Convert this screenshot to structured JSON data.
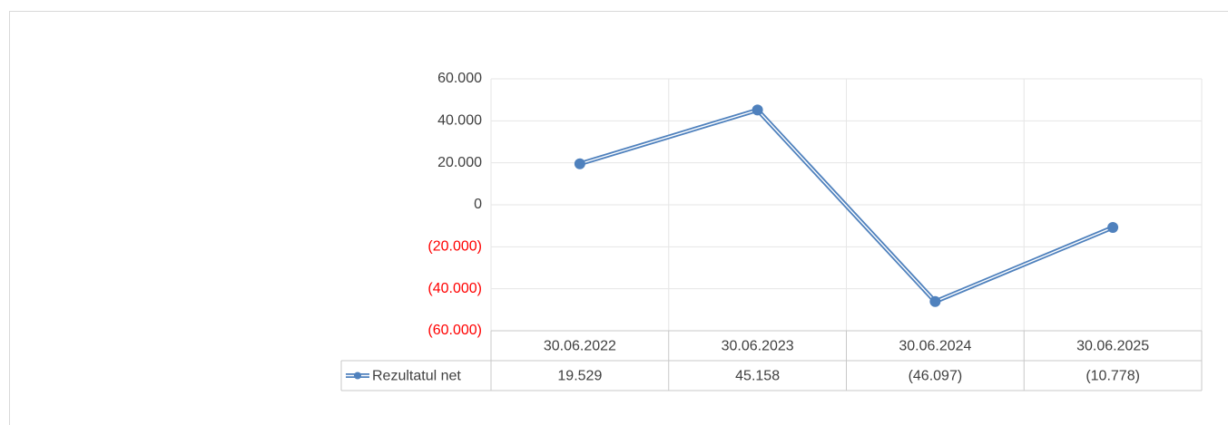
{
  "chart_data": {
    "type": "line",
    "categories": [
      "30.06.2022",
      "30.06.2023",
      "30.06.2024",
      "30.06.2025"
    ],
    "series": [
      {
        "name": "Rezultatul net",
        "color": "#4f81bd",
        "values": [
          19529,
          45158,
          -46097,
          -10778
        ],
        "value_labels": [
          "19.529",
          "45.158",
          "(46.097)",
          "(10.778)"
        ]
      }
    ],
    "ylim": [
      -60000,
      60000
    ],
    "yticks": [
      {
        "value": -60000,
        "label": "(60.000)"
      },
      {
        "value": -40000,
        "label": "(40.000)"
      },
      {
        "value": -20000,
        "label": "(20.000)"
      },
      0,
      {
        "value": 20000,
        "label": "20.000"
      },
      {
        "value": 40000,
        "label": "40.000"
      },
      {
        "value": 60000,
        "label": "60.000"
      }
    ],
    "negative_tick_color": "#ff0000",
    "grid": true,
    "data_table": true
  }
}
